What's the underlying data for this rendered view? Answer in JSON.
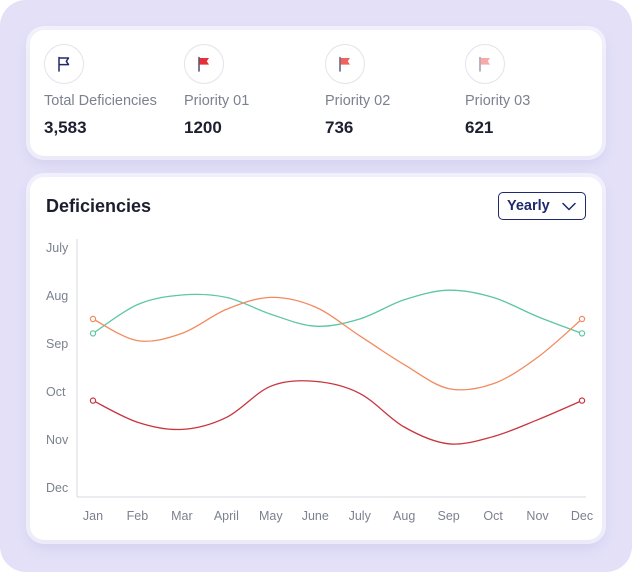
{
  "stats": [
    {
      "label": "Total Deficiencies",
      "value": "3,583",
      "icon": "flag-outline-icon",
      "color": "#1e2a6b"
    },
    {
      "label": "Priority 01",
      "value": "1200",
      "icon": "flag-icon",
      "color": "#e5303a"
    },
    {
      "label": "Priority 02",
      "value": "736",
      "icon": "flag-icon",
      "color": "#f0625f"
    },
    {
      "label": "Priority 03",
      "value": "621",
      "icon": "flag-icon",
      "color": "#f6aaaa"
    }
  ],
  "chart_header": {
    "title": "Deficiencies",
    "period": "Yearly",
    "dropdown_icon": "chevron-down-icon"
  },
  "chart_data": {
    "type": "line",
    "title": "Deficiencies",
    "categories": [
      "Jan",
      "Feb",
      "Mar",
      "April",
      "May",
      "June",
      "July",
      "Aug",
      "Sep",
      "Oct",
      "Nov",
      "Dec"
    ],
    "y_categories": [
      "July",
      "Aug",
      "Sep",
      "Oct",
      "Nov",
      "Dec"
    ],
    "y_axis_direction": "top-to-bottom",
    "grid": false,
    "legend": "none",
    "series": [
      {
        "color": "#5cc7a1",
        "values": [
          8.8,
          8.2,
          8.0,
          8.05,
          8.4,
          8.65,
          8.5,
          8.1,
          7.9,
          8.05,
          8.45,
          8.8
        ]
      },
      {
        "color": "#f28a5e",
        "values": [
          8.5,
          8.95,
          8.8,
          8.3,
          8.05,
          8.25,
          8.85,
          9.45,
          9.95,
          9.85,
          9.3,
          8.5
        ]
      },
      {
        "color": "#c8353f",
        "values": [
          10.2,
          10.65,
          10.8,
          10.55,
          9.9,
          9.8,
          10.05,
          10.75,
          11.1,
          10.95,
          10.6,
          10.2
        ]
      }
    ]
  }
}
